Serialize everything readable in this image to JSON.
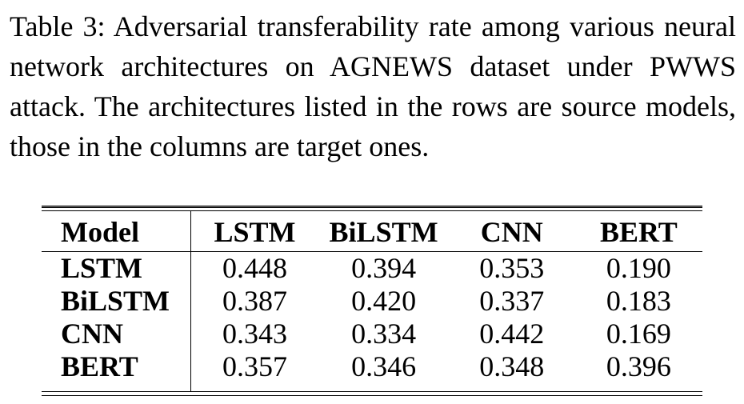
{
  "caption": "Table 3: Adversarial transferability rate among various neural network architectures on AGNEWS dataset under PWWS attack. The architectures listed in the rows are source models, those in the columns are target ones.",
  "table": {
    "headers": [
      "Model",
      "LSTM",
      "BiLSTM",
      "CNN",
      "BERT"
    ],
    "rows": [
      [
        "LSTM",
        "0.448",
        "0.394",
        "0.353",
        "0.190"
      ],
      [
        "BiLSTM",
        "0.387",
        "0.420",
        "0.337",
        "0.183"
      ],
      [
        "CNN",
        "0.343",
        "0.334",
        "0.442",
        "0.169"
      ],
      [
        "BERT",
        "0.357",
        "0.346",
        "0.348",
        "0.396"
      ]
    ]
  }
}
